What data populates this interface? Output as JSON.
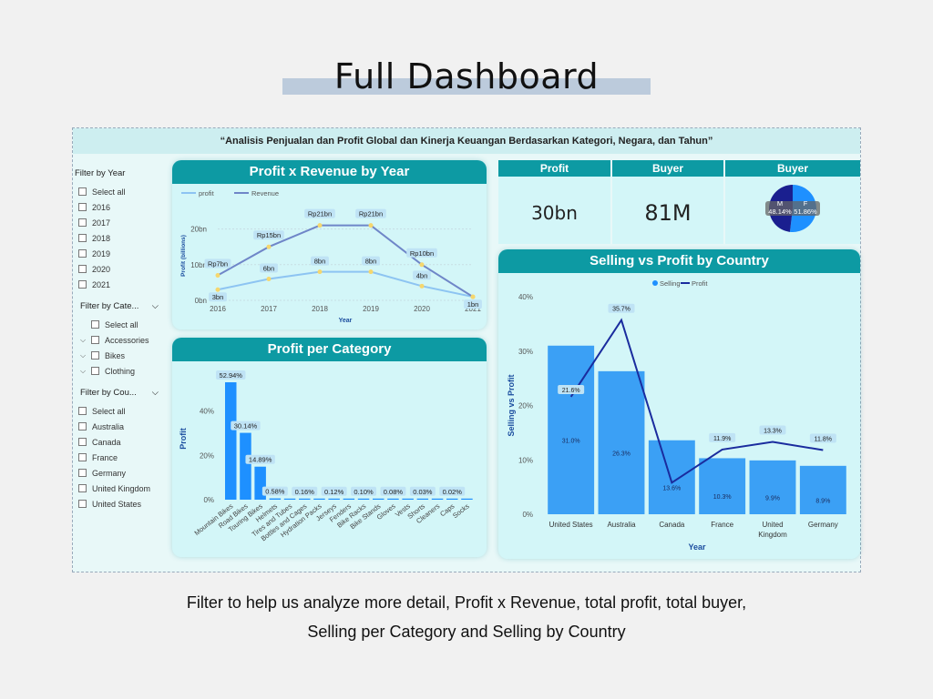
{
  "page_title": "Full Dashboard",
  "banner": "“Analisis Penjualan dan Profit Global dan Kinerja Keuangan Berdasarkan Kategori, Negara, dan Tahun”",
  "filters": {
    "year": {
      "title": "Filter by Year",
      "items": [
        "Select all",
        "2016",
        "2017",
        "2018",
        "2019",
        "2020",
        "2021"
      ]
    },
    "category": {
      "title": "Filter by Cate...",
      "items": [
        "Select all",
        "Accessories",
        "Bikes",
        "Clothing"
      ]
    },
    "country": {
      "title": "Filter by Cou...",
      "items": [
        "Select all",
        "Australia",
        "Canada",
        "France",
        "Germany",
        "United Kingdom",
        "United States"
      ]
    }
  },
  "kpis": [
    {
      "label": "Profit",
      "value": "30bn"
    },
    {
      "label": "Buyer",
      "value": "81M"
    },
    {
      "label": "Buyer",
      "m_label": "M",
      "f_label": "F",
      "m_value": "48.14%",
      "f_value": "51.86%",
      "m_share": 48.14,
      "f_share": 51.86
    }
  ],
  "colors": {
    "teal": "#0d9aa3",
    "bar": "#1e90ff",
    "line_dark": "#1a2c9e",
    "line_light": "#7db7f0",
    "profit_line": "#8dc4f2",
    "revenue_line": "#6f86c8",
    "marker": "#f5d76e"
  },
  "chart_data": [
    {
      "type": "line",
      "title": "Profit x Revenue by Year",
      "xlabel": "Year",
      "ylabel": "Profit (billions)",
      "x": [
        "2016",
        "2017",
        "2018",
        "2019",
        "2020",
        "2021"
      ],
      "yticks": [
        "0bn",
        "10bn",
        "20bn"
      ],
      "ylim": [
        0,
        25
      ],
      "series": [
        {
          "name": "profit",
          "values": [
            3,
            6,
            8,
            8,
            4,
            1
          ],
          "labels": [
            "3bn",
            "6bn",
            "8bn",
            "8bn",
            "4bn",
            "1bn"
          ]
        },
        {
          "name": "Revenue",
          "values": [
            7,
            15,
            21,
            21,
            10,
            1
          ],
          "labels": [
            "Rp7bn",
            "Rp15bn",
            "Rp21bn",
            "Rp21bn",
            "Rp10bn",
            ""
          ]
        }
      ]
    },
    {
      "type": "bar",
      "title": "Profit per Category",
      "ylabel": "Profit",
      "yticks": [
        "0%",
        "20%",
        "40%"
      ],
      "ylim": [
        0,
        55
      ],
      "categories": [
        "Mountain Bikes",
        "Road Bikes",
        "Touring Bikes",
        "Helmets",
        "Tires and Tubes",
        "Bottles and Cages",
        "Hydration Packs",
        "Jerseys",
        "Fenders",
        "Bike Racks",
        "Bike Stands",
        "Gloves",
        "Vests",
        "Shorts",
        "Cleaners",
        "Caps",
        "Socks"
      ],
      "values": [
        52.94,
        30.14,
        14.89,
        0.58,
        0.4,
        0.16,
        0.14,
        0.12,
        0.11,
        0.1,
        0.09,
        0.08,
        0.05,
        0.03,
        0.02,
        0.02,
        0.01
      ],
      "labels": [
        "52.94%",
        "30.14%",
        "14.89%",
        "0.58%",
        "",
        "0.16%",
        "",
        "0.12%",
        "",
        "0.10%",
        "",
        "0.08%",
        "",
        "0.03%",
        "",
        "0.02%",
        ""
      ]
    },
    {
      "type": "bar",
      "title": "Selling vs Profit by Country",
      "xlabel": "Year",
      "ylabel": "Selling vs Profit",
      "legend": [
        "Selling",
        "Profit"
      ],
      "yticks": [
        "0%",
        "10%",
        "20%",
        "30%",
        "40%"
      ],
      "ylim": [
        0,
        40
      ],
      "categories": [
        "United States",
        "Australia",
        "Canada",
        "France",
        "United Kingdom",
        "Germany"
      ],
      "series": [
        {
          "name": "Selling",
          "values": [
            31.0,
            26.3,
            13.6,
            10.3,
            9.9,
            8.9
          ],
          "labels": [
            "31.0%",
            "26.3%",
            "13.6%",
            "10.3%",
            "9.9%",
            "8.9%"
          ]
        },
        {
          "name": "Profit",
          "values": [
            21.6,
            35.7,
            5.8,
            11.9,
            13.3,
            11.8
          ],
          "labels": [
            "21.6%",
            "35.7%",
            "",
            "11.9%",
            "13.3%",
            "11.8%"
          ]
        }
      ]
    }
  ],
  "caption": {
    "line1": "Filter to help us analyze more detail, Profit x Revenue, total profit, total buyer,",
    "line2": "Selling per Category and Selling by Country"
  }
}
